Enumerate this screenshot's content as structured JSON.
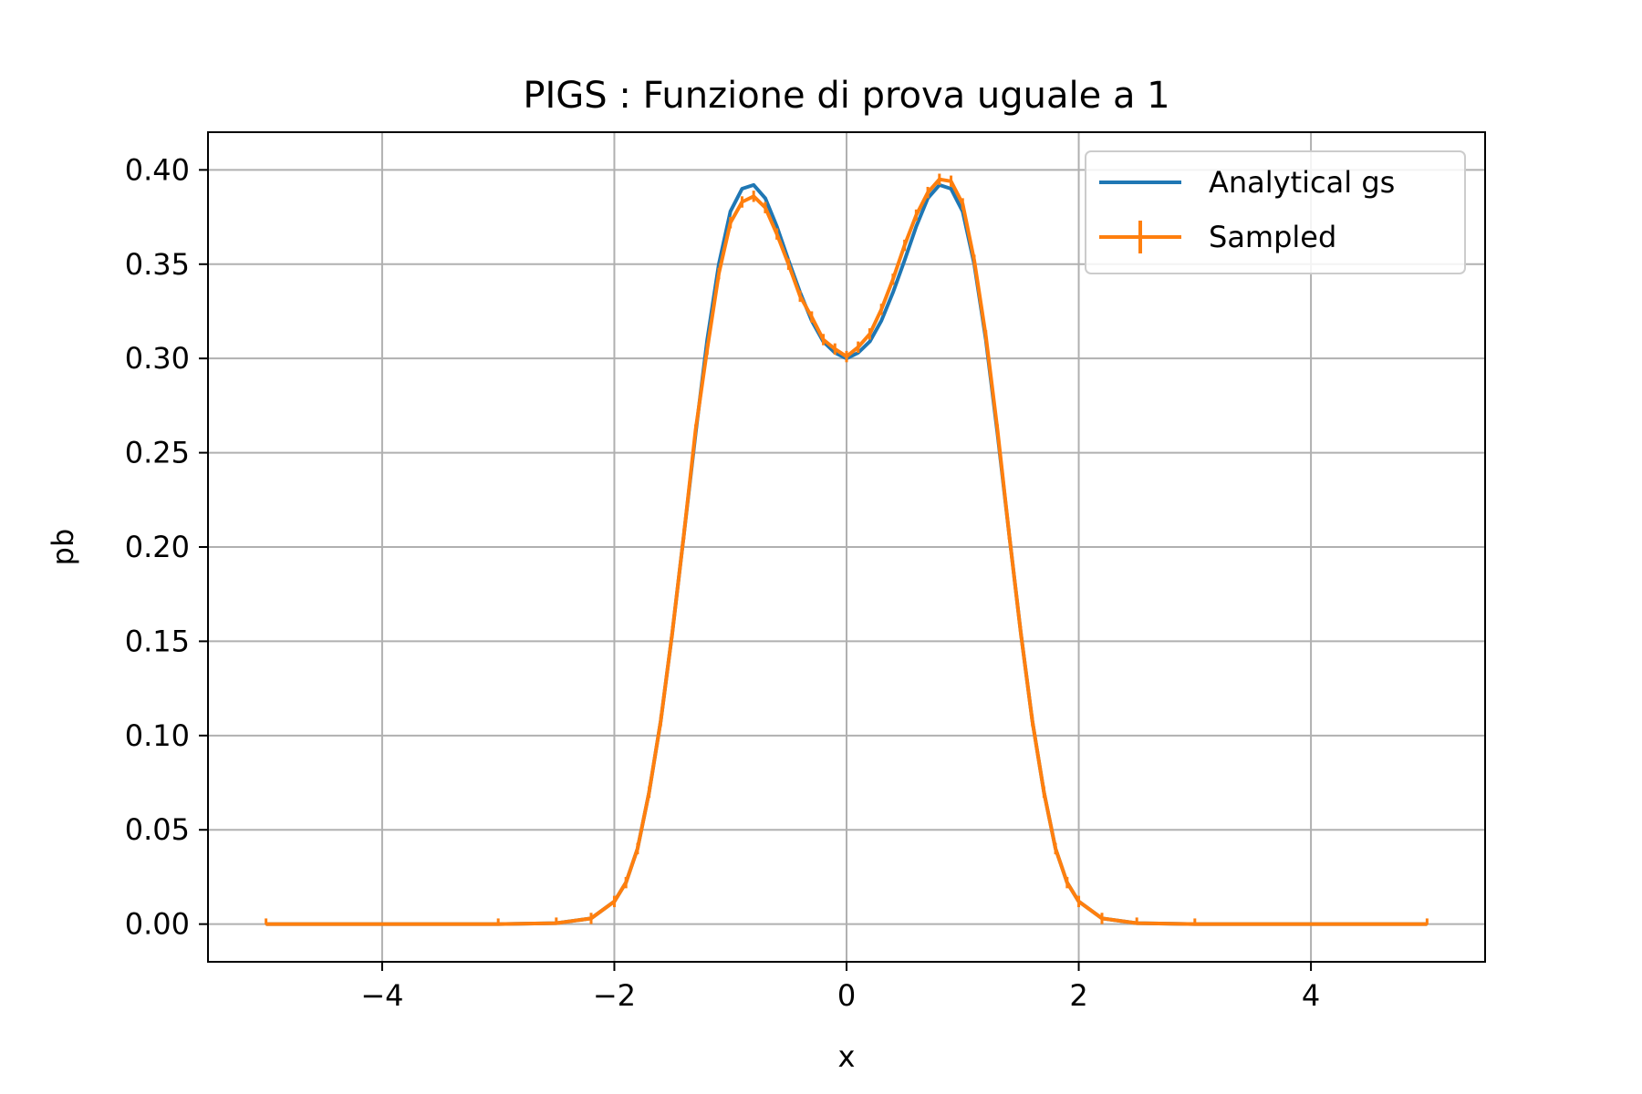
{
  "chart_data": {
    "type": "line",
    "title": "PIGS : Funzione di prova uguale a 1",
    "xlabel": "x",
    "ylabel": "pb",
    "xlim": [
      -5.5,
      5.5
    ],
    "ylim": [
      -0.02,
      0.42
    ],
    "grid": true,
    "legend_position": "top-right",
    "x_ticks": [
      -4,
      -2,
      0,
      2,
      4
    ],
    "x_tick_labels": [
      "−4",
      "−2",
      "0",
      "2",
      "4"
    ],
    "y_ticks": [
      0.0,
      0.05,
      0.1,
      0.15,
      0.2,
      0.25,
      0.3,
      0.35,
      0.4
    ],
    "y_tick_labels": [
      "0.00",
      "0.05",
      "0.10",
      "0.15",
      "0.20",
      "0.25",
      "0.30",
      "0.35",
      "0.40"
    ],
    "series": [
      {
        "name": "Analytical gs",
        "color": "#1f77b4",
        "style": "line",
        "x": [
          -5.0,
          -3.0,
          -2.5,
          -2.2,
          -2.0,
          -1.9,
          -1.8,
          -1.7,
          -1.6,
          -1.5,
          -1.4,
          -1.3,
          -1.2,
          -1.1,
          -1.0,
          -0.9,
          -0.8,
          -0.7,
          -0.6,
          -0.5,
          -0.4,
          -0.3,
          -0.2,
          -0.1,
          0.0,
          0.1,
          0.2,
          0.3,
          0.4,
          0.5,
          0.6,
          0.7,
          0.8,
          0.9,
          1.0,
          1.1,
          1.2,
          1.3,
          1.4,
          1.5,
          1.6,
          1.7,
          1.8,
          1.9,
          2.0,
          2.2,
          2.5,
          3.0,
          5.0
        ],
        "y": [
          0.0,
          0.0,
          0.0005,
          0.003,
          0.012,
          0.022,
          0.04,
          0.07,
          0.108,
          0.155,
          0.207,
          0.26,
          0.31,
          0.35,
          0.378,
          0.39,
          0.392,
          0.385,
          0.37,
          0.352,
          0.335,
          0.32,
          0.309,
          0.303,
          0.3,
          0.303,
          0.309,
          0.32,
          0.335,
          0.352,
          0.37,
          0.385,
          0.392,
          0.39,
          0.378,
          0.35,
          0.31,
          0.26,
          0.207,
          0.155,
          0.108,
          0.07,
          0.04,
          0.022,
          0.012,
          0.003,
          0.0005,
          0.0,
          0.0
        ]
      },
      {
        "name": "Sampled",
        "color": "#ff7f0e",
        "style": "errorbar",
        "x": [
          -5.0,
          -3.0,
          -2.5,
          -2.2,
          -2.0,
          -1.9,
          -1.8,
          -1.7,
          -1.6,
          -1.5,
          -1.4,
          -1.3,
          -1.2,
          -1.1,
          -1.0,
          -0.9,
          -0.8,
          -0.7,
          -0.6,
          -0.5,
          -0.4,
          -0.3,
          -0.2,
          -0.1,
          0.0,
          0.1,
          0.2,
          0.3,
          0.4,
          0.5,
          0.6,
          0.7,
          0.8,
          0.9,
          1.0,
          1.1,
          1.2,
          1.3,
          1.4,
          1.5,
          1.6,
          1.7,
          1.8,
          1.9,
          2.0,
          2.2,
          2.5,
          3.0,
          5.0
        ],
        "y": [
          0.0,
          0.0,
          0.0005,
          0.003,
          0.012,
          0.022,
          0.04,
          0.07,
          0.108,
          0.155,
          0.207,
          0.262,
          0.305,
          0.345,
          0.372,
          0.383,
          0.386,
          0.38,
          0.366,
          0.35,
          0.333,
          0.322,
          0.31,
          0.305,
          0.301,
          0.306,
          0.313,
          0.326,
          0.342,
          0.36,
          0.376,
          0.388,
          0.395,
          0.394,
          0.382,
          0.352,
          0.312,
          0.262,
          0.207,
          0.155,
          0.108,
          0.07,
          0.04,
          0.022,
          0.012,
          0.003,
          0.0005,
          0.0,
          0.0
        ]
      }
    ]
  }
}
